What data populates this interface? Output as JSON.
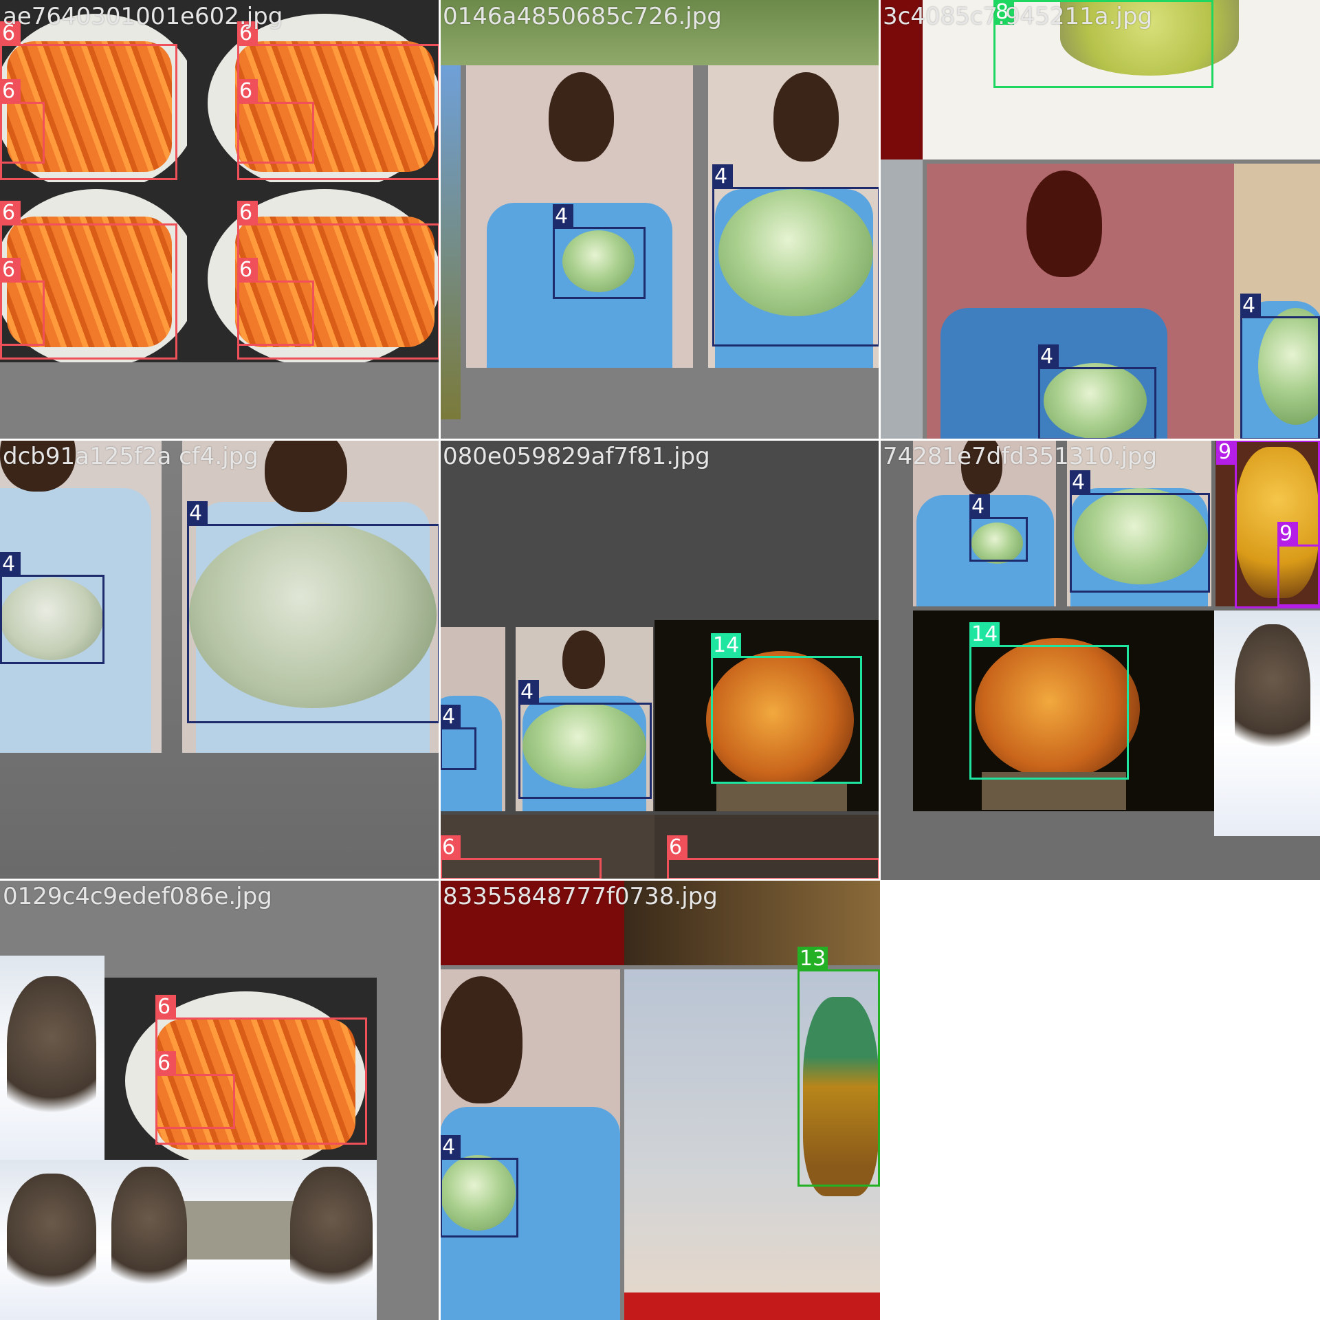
{
  "tiles": [
    {
      "title": "ae7640301001e602.jpg"
    },
    {
      "title": "0146a4850685c726.jpg"
    },
    {
      "title": "3c4085c7.945211a.jpg"
    },
    {
      "title": "dcb91a125f2a  cf4.jpg"
    },
    {
      "title": "080e059829af7f81.jpg"
    },
    {
      "title": "74281e7dfd351310.jpg"
    },
    {
      "title": "0129c4c9edef086e.jpg"
    },
    {
      "title": "83355848777f0738.jpg"
    }
  ],
  "classes": {
    "c4": {
      "label": "4",
      "color": "#1d2a6b"
    },
    "c6": {
      "label": "6",
      "color": "#f0505a"
    },
    "c8": {
      "label": "8",
      "color": "#1ed760"
    },
    "c9": {
      "label": "9",
      "color": "#b41ee6"
    },
    "c13": {
      "label": "13",
      "color": "#24b024"
    },
    "c14": {
      "label": "14",
      "color": "#1ee6a0"
    }
  }
}
